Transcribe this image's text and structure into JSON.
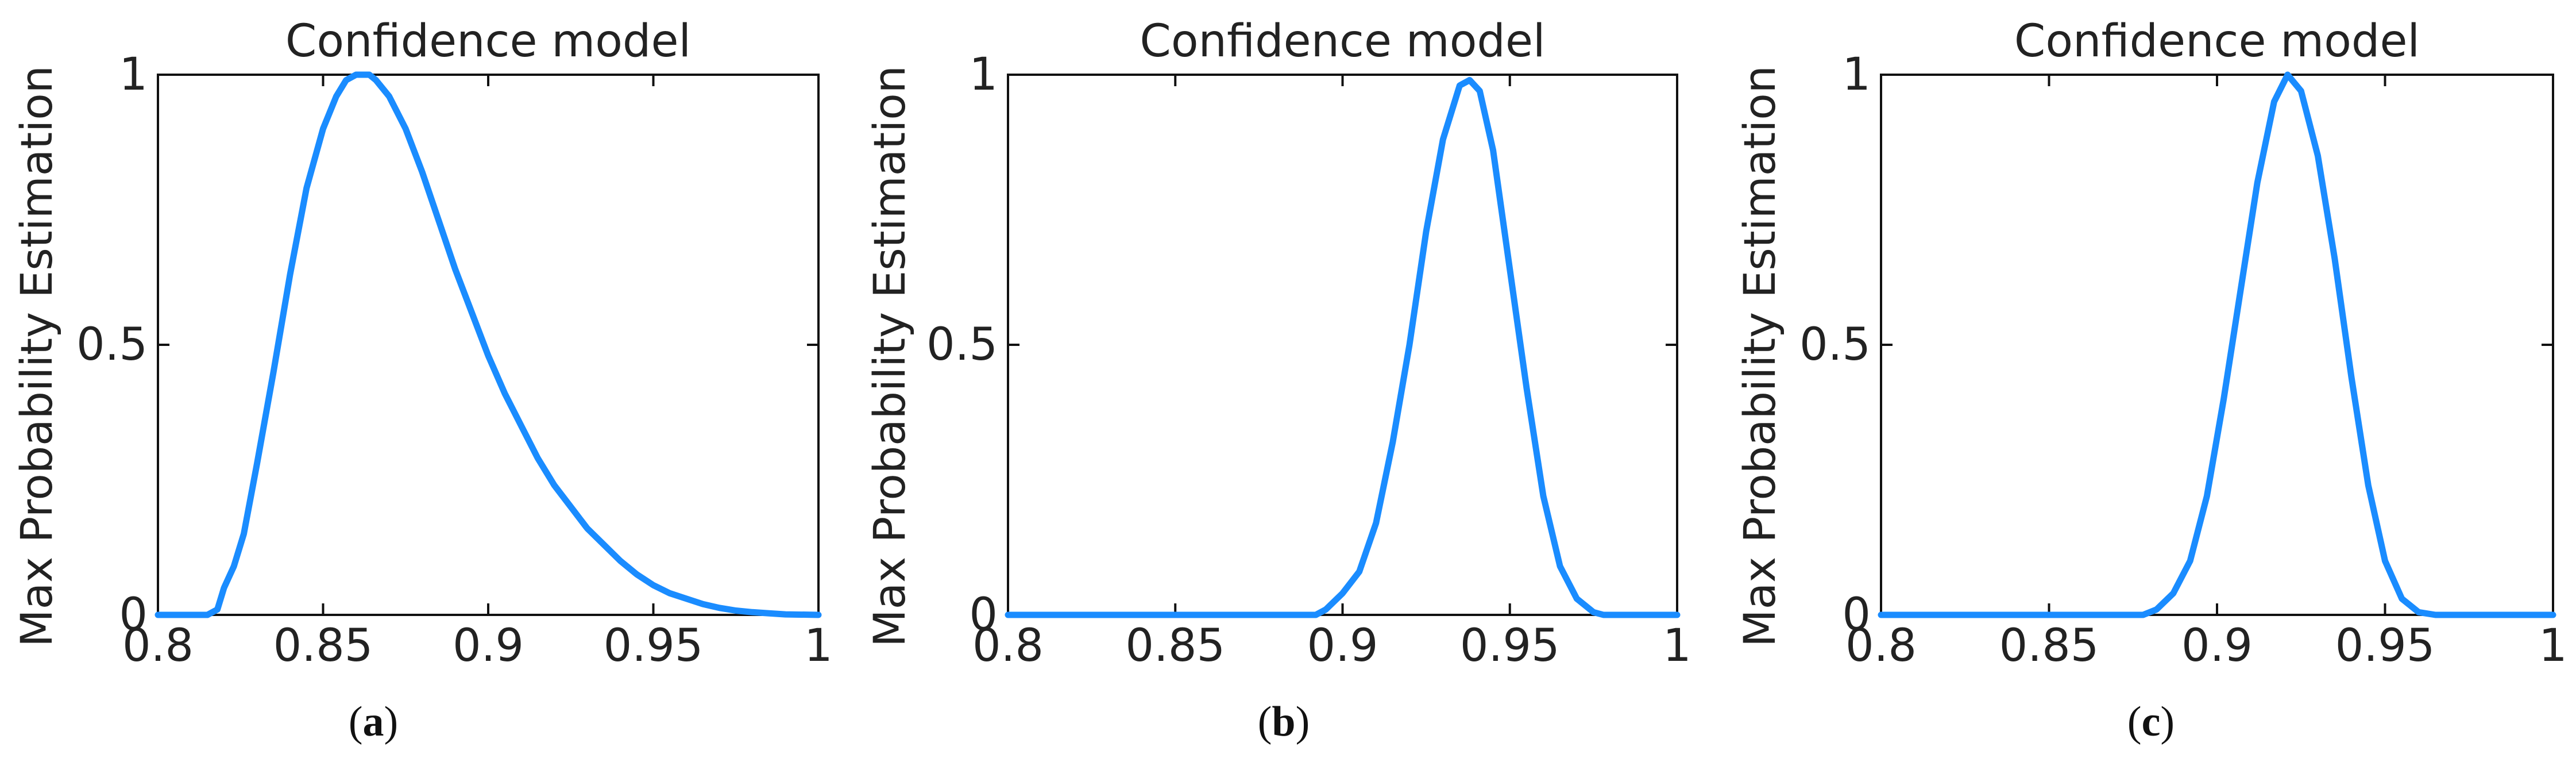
{
  "chart_data": [
    {
      "type": "line",
      "title": "Confidence model",
      "xlabel": "",
      "ylabel": "Max Probability Estimation",
      "xlim": [
        0.8,
        1.0
      ],
      "ylim": [
        0,
        1
      ],
      "xticks": [
        "0.8",
        "0.85",
        "0.9",
        "0.95",
        "1"
      ],
      "yticks": [
        "0",
        "0.5",
        "1"
      ],
      "grid": false,
      "caption_letter": "a",
      "color": "#1a8cff",
      "series": [
        {
          "x": [
            0.8,
            0.815,
            0.818,
            0.82,
            0.823,
            0.826,
            0.83,
            0.835,
            0.84,
            0.845,
            0.85,
            0.854,
            0.857,
            0.86,
            0.862,
            0.864,
            0.866,
            0.87,
            0.875,
            0.88,
            0.885,
            0.89,
            0.895,
            0.9,
            0.905,
            0.91,
            0.915,
            0.92,
            0.925,
            0.93,
            0.935,
            0.94,
            0.945,
            0.95,
            0.955,
            0.96,
            0.965,
            0.97,
            0.975,
            0.98,
            0.985,
            0.99,
            1.0
          ],
          "y": [
            0,
            0,
            0.01,
            0.05,
            0.09,
            0.15,
            0.28,
            0.45,
            0.63,
            0.79,
            0.9,
            0.96,
            0.99,
            1.0,
            1.0,
            1.0,
            0.99,
            0.96,
            0.9,
            0.82,
            0.73,
            0.64,
            0.56,
            0.48,
            0.41,
            0.35,
            0.29,
            0.24,
            0.2,
            0.16,
            0.13,
            0.1,
            0.075,
            0.055,
            0.04,
            0.03,
            0.02,
            0.013,
            0.008,
            0.005,
            0.003,
            0.001,
            0
          ]
        }
      ]
    },
    {
      "type": "line",
      "title": "Confidence model",
      "xlabel": "",
      "ylabel": "Max Probability Estimation",
      "xlim": [
        0.8,
        1.0
      ],
      "ylim": [
        0,
        1
      ],
      "xticks": [
        "0.8",
        "0.85",
        "0.9",
        "0.95",
        "1"
      ],
      "yticks": [
        "0",
        "0.5",
        "1"
      ],
      "grid": false,
      "caption_letter": "b",
      "color": "#1a8cff",
      "series": [
        {
          "x": [
            0.8,
            0.892,
            0.895,
            0.9,
            0.905,
            0.91,
            0.915,
            0.92,
            0.925,
            0.93,
            0.935,
            0.938,
            0.941,
            0.945,
            0.95,
            0.955,
            0.96,
            0.965,
            0.97,
            0.975,
            0.978,
            1.0
          ],
          "y": [
            0,
            0,
            0.01,
            0.04,
            0.08,
            0.17,
            0.32,
            0.5,
            0.71,
            0.88,
            0.98,
            0.99,
            0.97,
            0.86,
            0.64,
            0.42,
            0.22,
            0.09,
            0.03,
            0.005,
            0,
            0
          ]
        }
      ]
    },
    {
      "type": "line",
      "title": "Confidence model",
      "xlabel": "",
      "ylabel": "Max Probability Estimation",
      "xlim": [
        0.8,
        1.0
      ],
      "ylim": [
        0,
        1
      ],
      "xticks": [
        "0.8",
        "0.85",
        "0.9",
        "0.95",
        "1"
      ],
      "yticks": [
        "0",
        "0.5",
        "1"
      ],
      "grid": false,
      "caption_letter": "c",
      "color": "#1a8cff",
      "series": [
        {
          "x": [
            0.8,
            0.878,
            0.882,
            0.887,
            0.892,
            0.897,
            0.902,
            0.907,
            0.912,
            0.917,
            0.921,
            0.925,
            0.93,
            0.935,
            0.94,
            0.945,
            0.95,
            0.955,
            0.96,
            0.965,
            1.0
          ],
          "y": [
            0,
            0,
            0.01,
            0.04,
            0.1,
            0.22,
            0.4,
            0.6,
            0.8,
            0.95,
            1.0,
            0.97,
            0.85,
            0.66,
            0.44,
            0.24,
            0.1,
            0.03,
            0.005,
            0,
            0
          ]
        }
      ]
    }
  ]
}
